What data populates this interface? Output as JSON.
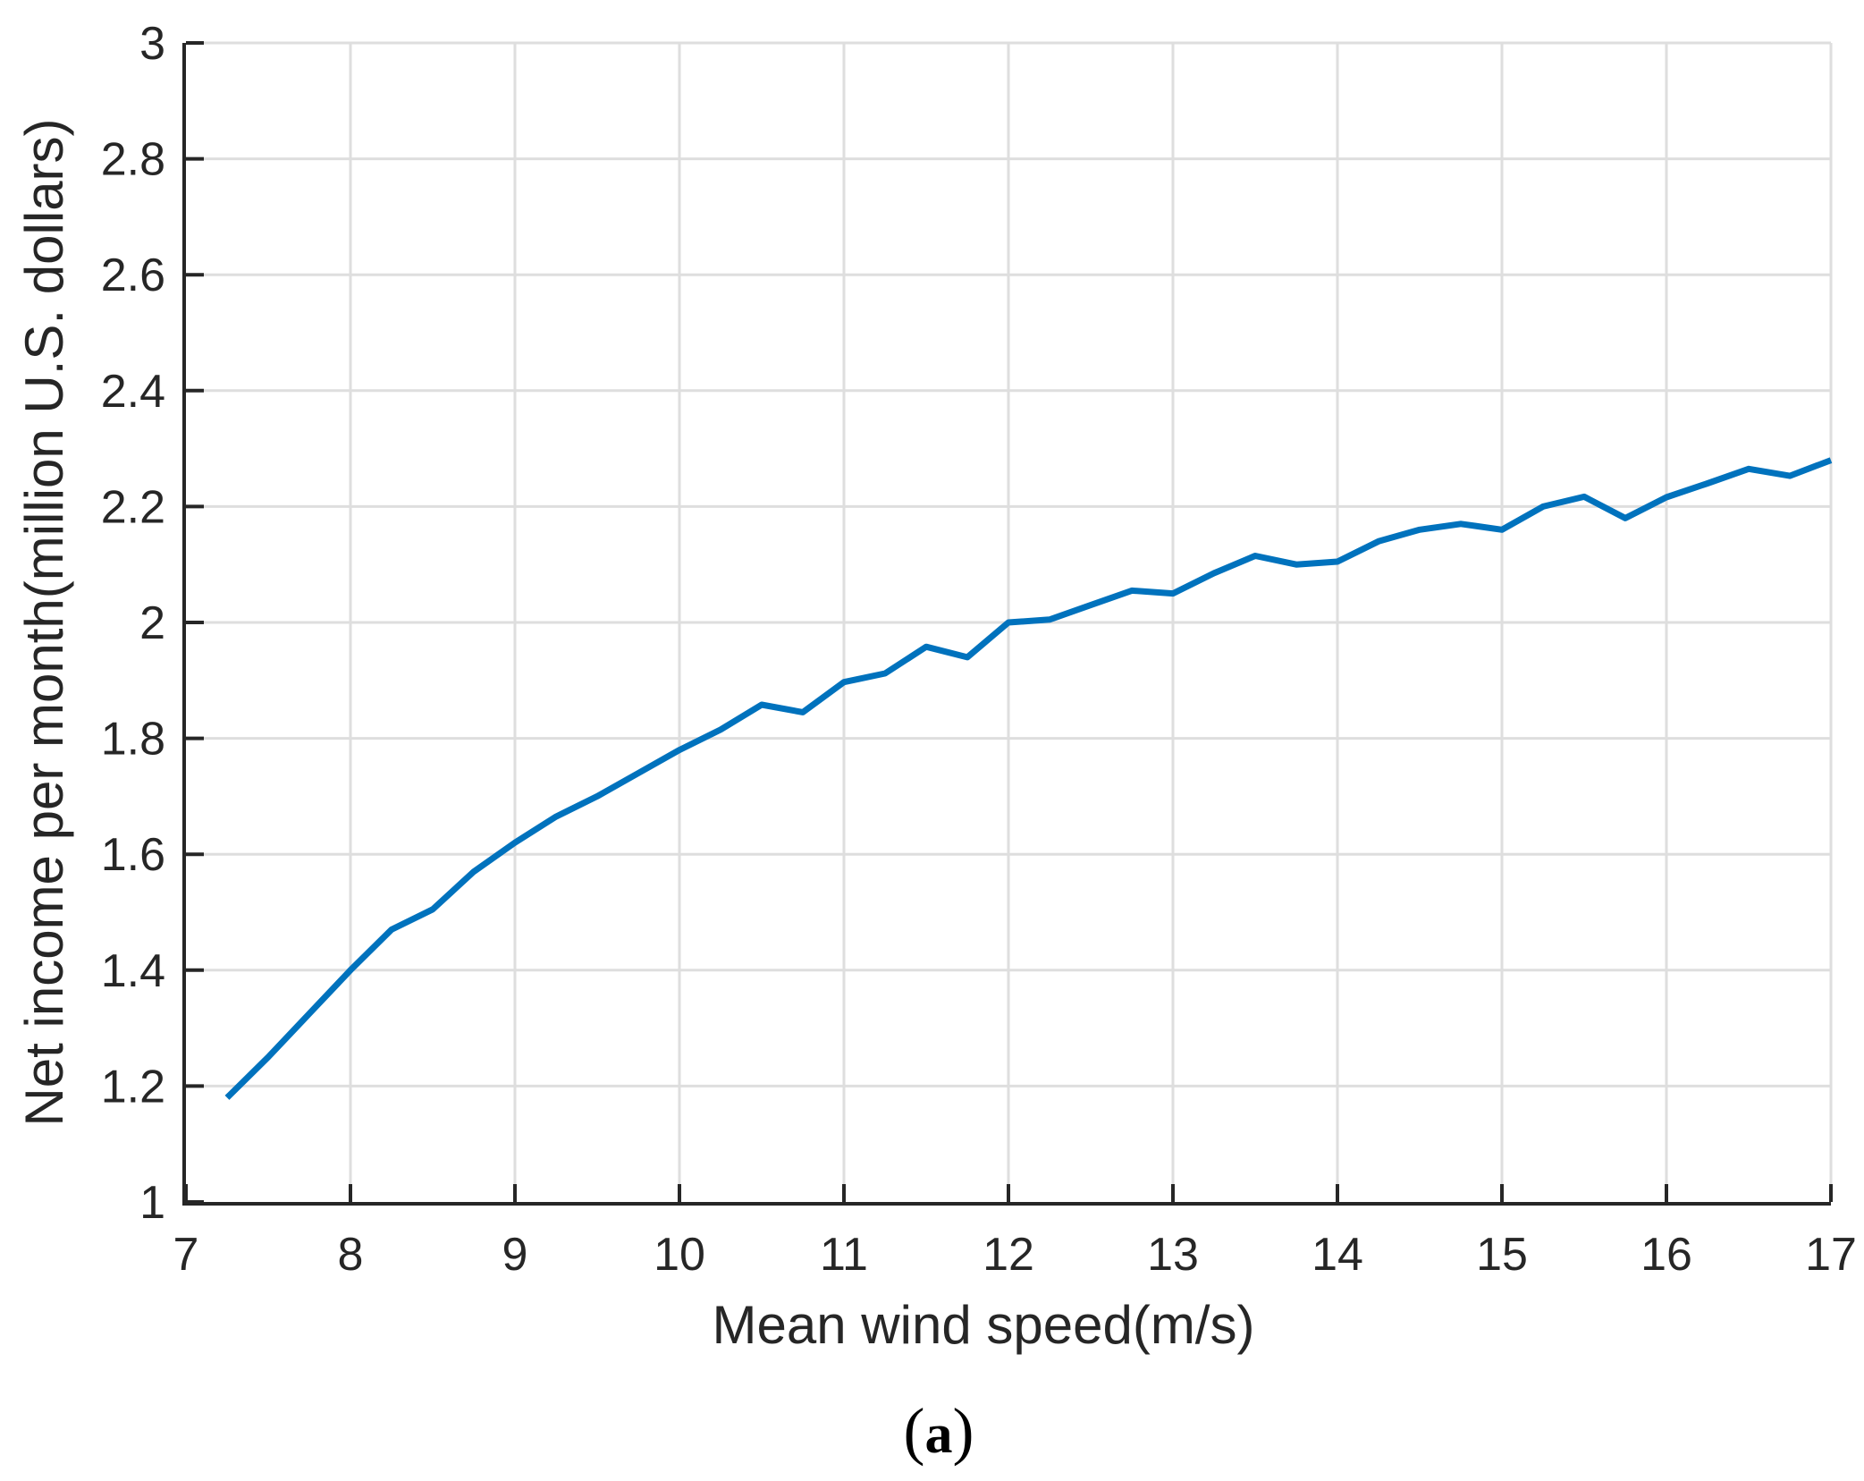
{
  "figure": {
    "caption": {
      "open": "(",
      "letter": "a",
      "close": ")"
    }
  },
  "chart_data": {
    "type": "line",
    "title": "",
    "xlabel": "Mean wind speed(m/s)",
    "ylabel": "Net income per month(million U.S. dollars)",
    "x": [
      7.25,
      7.5,
      7.75,
      8.0,
      8.25,
      8.5,
      8.75,
      9.0,
      9.25,
      9.5,
      9.75,
      10.0,
      10.25,
      10.5,
      10.75,
      11.0,
      11.25,
      11.5,
      11.75,
      12.0,
      12.25,
      12.5,
      12.75,
      13.0,
      13.25,
      13.5,
      13.75,
      14.0,
      14.25,
      14.5,
      14.75,
      15.0,
      15.25,
      15.5,
      15.75,
      16.0,
      16.25,
      16.5,
      16.75,
      17.0
    ],
    "series": [
      {
        "name": "net-income-per-month",
        "values": [
          1.18,
          1.25,
          1.325,
          1.4,
          1.47,
          1.505,
          1.57,
          1.62,
          1.665,
          1.7,
          1.74,
          1.78,
          1.815,
          1.858,
          1.845,
          1.897,
          1.912,
          1.958,
          1.94,
          2.0,
          2.005,
          2.03,
          2.055,
          2.05,
          2.085,
          2.115,
          2.1,
          2.105,
          2.14,
          2.16,
          2.17,
          2.16,
          2.2,
          2.217,
          2.18,
          2.216,
          2.24,
          2.265,
          2.253,
          2.28
        ]
      }
    ],
    "xlim": [
      7,
      17
    ],
    "ylim": [
      1,
      3
    ],
    "x_ticks": [
      7,
      8,
      9,
      10,
      11,
      12,
      13,
      14,
      15,
      16,
      17
    ],
    "x_tick_labels": [
      "7",
      "8",
      "9",
      "10",
      "11",
      "12",
      "13",
      "14",
      "15",
      "16",
      "17"
    ],
    "y_ticks": [
      1,
      1.2,
      1.4,
      1.6,
      1.8,
      2,
      2.2,
      2.4,
      2.6,
      2.8,
      3
    ],
    "y_tick_labels": [
      "1",
      "1.2",
      "1.4",
      "1.6",
      "1.8",
      "2",
      "2.2",
      "2.4",
      "2.6",
      "2.8",
      "3"
    ],
    "grid": true,
    "legend": "none",
    "colors": {
      "line": "#0072BD",
      "axis": "#262626",
      "grid": "#DEDEDE",
      "background": "#FFFFFF"
    }
  }
}
